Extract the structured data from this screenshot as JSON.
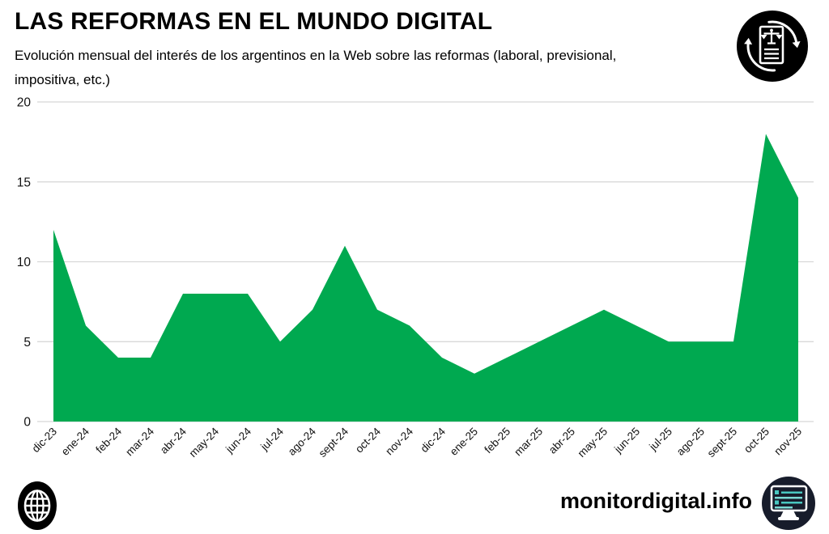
{
  "header": {
    "title": "LAS REFORMAS EN EL MUNDO DIGITAL",
    "subtitle_line1": "Evolución mensual del interés de los argentinos en la Web sobre las reformas (laboral, previsional,",
    "subtitle_line2": "impositiva, etc.)"
  },
  "footer": {
    "site": "monitordigital.info"
  },
  "icons": {
    "top_right": "reform-document-refresh-icon",
    "bottom_left": "globe-icon",
    "bottom_right": "monitor-icon"
  },
  "colors": {
    "area_green": "#00a950",
    "grid": "#d8d8d8",
    "axis_text": "#111111",
    "icon_black": "#000000",
    "monitor_circle": "#171c2b",
    "monitor_teal": "#49c7c0",
    "icon_white": "#ffffff"
  },
  "chart_data": {
    "type": "area",
    "title": "LAS REFORMAS EN EL MUNDO DIGITAL",
    "subtitle": "Evolución mensual del interés de los argentinos en la Web sobre las reformas (laboral, previsional, impositiva, etc.)",
    "categories": [
      "dic-23",
      "ene-24",
      "feb-24",
      "mar-24",
      "abr-24",
      "may-24",
      "jun-24",
      "jul-24",
      "ago-24",
      "sept-24",
      "oct-24",
      "nov-24",
      "dic-24",
      "ene-25",
      "feb-25",
      "mar-25",
      "abr-25",
      "may-25",
      "jun-25",
      "jul-25",
      "ago-25",
      "sept-25",
      "oct-25",
      "nov-25"
    ],
    "values": [
      12,
      6,
      4,
      4,
      8,
      8,
      8,
      5,
      7,
      11,
      7,
      6,
      4,
      3,
      4,
      5,
      6,
      7,
      6,
      5,
      5,
      5,
      18,
      14
    ],
    "xlabel": "",
    "ylabel": "",
    "ylim": [
      0,
      20
    ],
    "yticks": [
      0,
      5,
      10,
      15,
      20
    ],
    "grid": true,
    "legend": "none",
    "color": "#00a950"
  }
}
